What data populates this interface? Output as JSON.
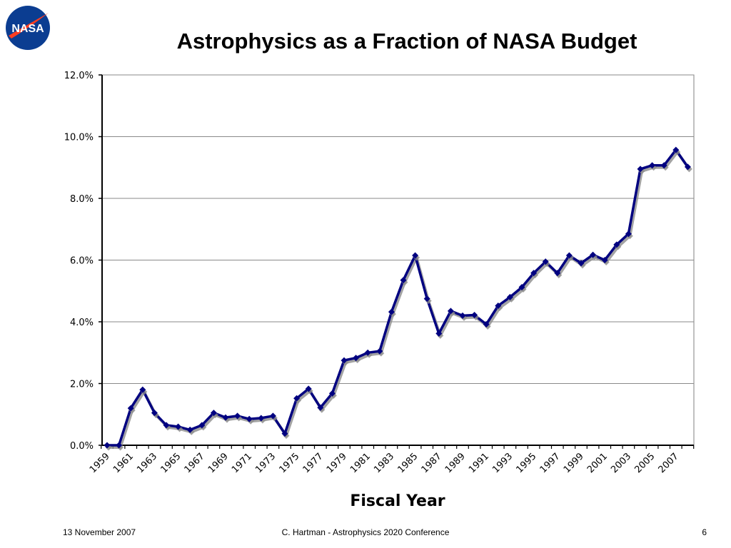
{
  "slide": {
    "logo_text": "NASA",
    "footer_date": "13 November 2007",
    "footer_center": "C. Hartman - Astrophysics 2020 Conference",
    "page_number": "6"
  },
  "colors": {
    "line": "#000080",
    "shadow": "#8c8c8c",
    "logo_blue": "#0b3d91",
    "logo_red": "#fc3d21"
  },
  "chart_data": {
    "type": "line",
    "title": "Astrophysics as a Fraction of NASA Budget",
    "xlabel": "Fiscal Year",
    "ylabel": "",
    "ylim": [
      0,
      12
    ],
    "y_ticks": [
      "0.0%",
      "2.0%",
      "4.0%",
      "6.0%",
      "8.0%",
      "10.0%",
      "12.0%"
    ],
    "x_tick_labels": [
      "1959",
      "1961",
      "1963",
      "1965",
      "1967",
      "1969",
      "1971",
      "1973",
      "1975",
      "1977",
      "1979",
      "1981",
      "1983",
      "1985",
      "1987",
      "1989",
      "1991",
      "1993",
      "1995",
      "1997",
      "1999",
      "2001",
      "2003",
      "2005",
      "2007"
    ],
    "grid": "horizontal",
    "legend": "none",
    "x": [
      1959,
      1960,
      1961,
      1962,
      1963,
      1964,
      1965,
      1966,
      1967,
      1968,
      1969,
      1970,
      1971,
      1972,
      1973,
      1974,
      1975,
      1976,
      1977,
      1978,
      1979,
      1980,
      1981,
      1982,
      1983,
      1984,
      1985,
      1986,
      1987,
      1988,
      1989,
      1990,
      1991,
      1992,
      1993,
      1994,
      1995,
      1996,
      1997,
      1998,
      1999,
      2000,
      2001,
      2002,
      2003,
      2004,
      2005,
      2006,
      2007,
      2008
    ],
    "values": [
      0.0,
      0.0,
      1.2,
      1.8,
      1.05,
      0.65,
      0.6,
      0.5,
      0.65,
      1.05,
      0.9,
      0.95,
      0.85,
      0.88,
      0.95,
      0.38,
      1.52,
      1.83,
      1.22,
      1.68,
      2.75,
      2.83,
      3.0,
      3.05,
      4.32,
      5.35,
      6.15,
      4.75,
      3.62,
      4.35,
      4.2,
      4.22,
      3.92,
      4.52,
      4.8,
      5.12,
      5.58,
      5.95,
      5.58,
      6.15,
      5.9,
      6.17,
      6.0,
      6.5,
      6.85,
      8.95,
      9.07,
      9.07,
      9.57,
      9.02
    ]
  }
}
